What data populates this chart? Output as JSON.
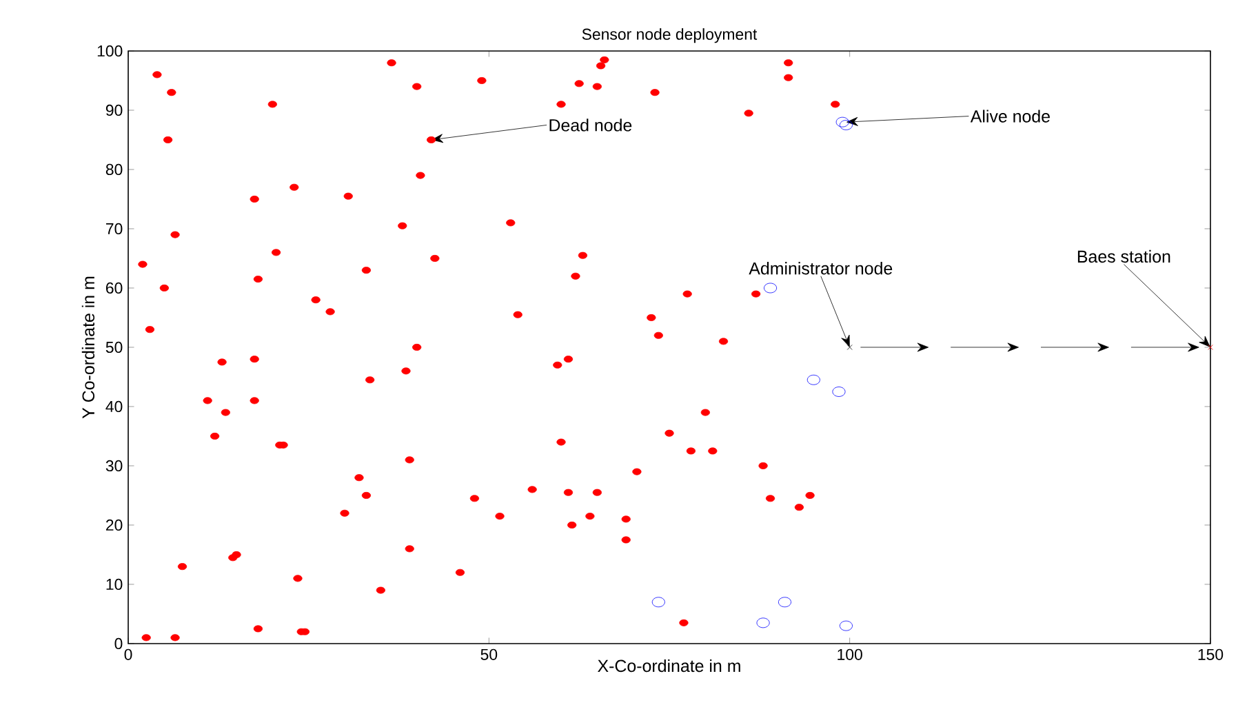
{
  "chart_data": {
    "type": "scatter",
    "title": "Sensor node deployment",
    "xlabel": "X-Co-ordinate in m",
    "ylabel": "Y Co-ordinate in m",
    "xlim": [
      0,
      150
    ],
    "ylim": [
      0,
      100
    ],
    "xticks": [
      0,
      50,
      100,
      150
    ],
    "yticks": [
      0,
      10,
      20,
      30,
      40,
      50,
      60,
      70,
      80,
      90,
      100
    ],
    "grid": false,
    "series": [
      {
        "color": "#ff0000",
        "marker": "circle",
        "x": [
          2.5,
          6.5,
          7.5,
          2,
          3,
          4,
          6,
          5.5,
          6.5,
          5,
          11,
          12,
          13,
          13.5,
          14.5,
          15,
          17.5,
          17.5,
          17.5,
          18,
          18,
          20,
          20.5,
          21,
          21.5,
          23,
          23.5,
          24,
          24.5,
          26,
          28,
          30,
          30.5,
          32,
          33,
          33,
          33.5,
          35,
          36.5,
          38,
          38.5,
          39,
          39,
          40,
          40,
          40.5,
          42,
          42.5,
          46,
          48,
          49,
          51.5,
          53,
          54,
          56,
          59.5,
          60,
          60,
          61,
          61,
          61.5,
          62,
          62.5,
          63,
          64,
          65,
          65,
          65.5,
          66,
          69,
          69,
          70.5,
          72.5,
          73,
          73.5,
          75,
          77,
          77.5,
          78,
          80,
          81,
          82.5,
          86,
          87,
          88,
          89,
          91.5,
          91.5,
          93,
          94.5,
          98
        ],
        "values": [
          1,
          1,
          13,
          64,
          53,
          96,
          93,
          85,
          69,
          60,
          41,
          35,
          47.5,
          39,
          14.5,
          15,
          41,
          48,
          75,
          61.5,
          2.5,
          91,
          66,
          33.5,
          33.5,
          77,
          11,
          2,
          2,
          58,
          56,
          22,
          75.5,
          28,
          25,
          63,
          44.5,
          9,
          98,
          70.5,
          46,
          16,
          31,
          94,
          50,
          79,
          85,
          65,
          12,
          24.5,
          95,
          21.5,
          71,
          55.5,
          26,
          47,
          34,
          91,
          48,
          25.5,
          20,
          62,
          94.5,
          65.5,
          21.5,
          94,
          25.5,
          97.5,
          98.5,
          17.5,
          21,
          29,
          55,
          93,
          52,
          35.5,
          3.5,
          59,
          32.5,
          39,
          32.5,
          51,
          89.5,
          59,
          30,
          24.5,
          98,
          95.5,
          23,
          25,
          91
        ]
      },
      {
        "color": "#0000ff",
        "marker": "open circle",
        "x": [
          99,
          99.5,
          89,
          95,
          98.5,
          73.5,
          88,
          91,
          99.5
        ],
        "values": [
          88,
          87.5,
          60,
          44.5,
          42.5,
          7,
          3.5,
          7,
          3
        ]
      },
      {
        "color": "#000000",
        "marker": "cross",
        "x": [
          100
        ],
        "values": [
          50
        ]
      },
      {
        "color": "#ff0000",
        "marker": "cross",
        "x": [
          150
        ],
        "values": [
          50
        ]
      }
    ],
    "annotations": [
      {
        "text": "Dead node",
        "x": 42,
        "y": 85
      },
      {
        "text": "Alive node",
        "x": 99.5,
        "y": 88
      },
      {
        "text": "Administrator node",
        "x": 100,
        "y": 50
      },
      {
        "text": "Baes station",
        "x": 150,
        "y": 50
      }
    ]
  }
}
